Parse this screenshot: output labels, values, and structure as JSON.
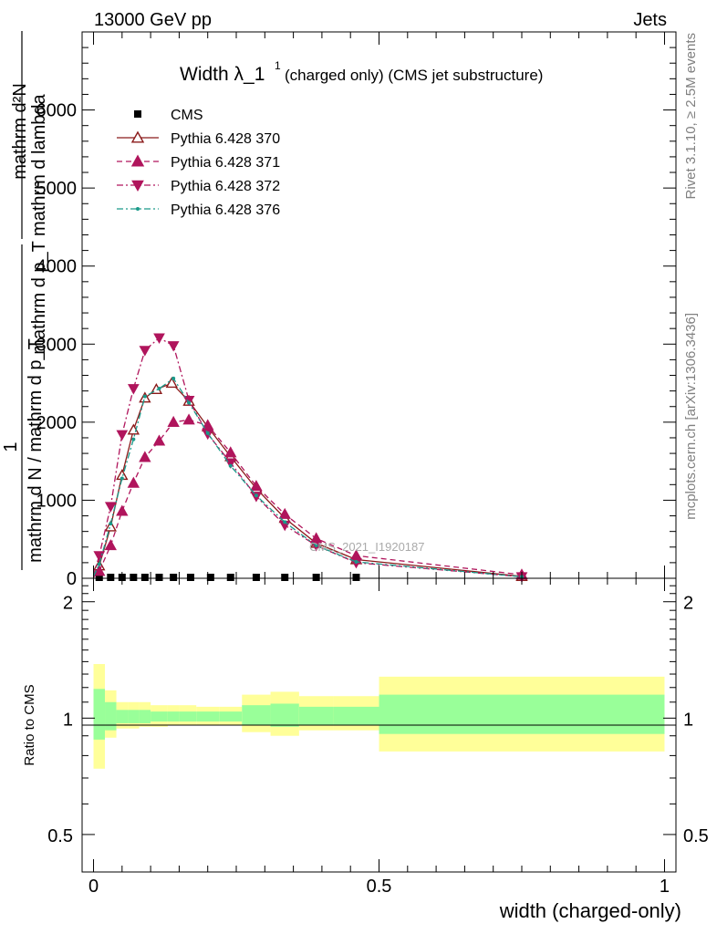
{
  "header": {
    "left": "13000 GeV pp",
    "right": "Jets"
  },
  "side_labels": {
    "rivet": "Rivet 3.1.10, ≥ 2.5M events",
    "mcplots": "mcplots.cern.ch [arXiv:1306.3436]"
  },
  "chart_data": [
    {
      "type": "line",
      "panel": "main",
      "title": "Width λ_1",
      "title_sup": "1",
      "subtitle": "(charged only) (CMS jet substructure)",
      "ylabel_numerator": "mathrm d²N",
      "ylabel_denominator": "mathrm d p_T mathrm d lambda",
      "ylabel_frac_left": "1",
      "ylabel_bottom": "mathrm d N / mathrm d p_T",
      "xlim": [
        -0.02,
        1.02
      ],
      "ylim": [
        0,
        7000
      ],
      "y_ticks": [
        0,
        1000,
        2000,
        3000,
        4000,
        5000,
        6000
      ],
      "y_tick_labels": [
        "0",
        "1000",
        "2000",
        "3000",
        "4000",
        "5000",
        "6000"
      ],
      "legend_position": "top-left",
      "watermark": "CMS_2021_I1920187",
      "series": [
        {
          "name": "CMS",
          "color": "#000000",
          "marker": "square",
          "line": "none",
          "x": [
            0.01,
            0.03,
            0.05,
            0.07,
            0.09,
            0.115,
            0.14,
            0.17,
            0.205,
            0.24,
            0.285,
            0.335,
            0.39,
            0.46
          ],
          "y": [
            0,
            0,
            0,
            0,
            0,
            0,
            0,
            0,
            0,
            0,
            0,
            0,
            0,
            0
          ]
        },
        {
          "name": "Pythia 6.428 370",
          "color": "#8b1a1a",
          "marker": "triangle-up-open",
          "line": "solid",
          "x": [
            0.0,
            0.01,
            0.03,
            0.05,
            0.07,
            0.09,
            0.11,
            0.137,
            0.167,
            0.2,
            0.24,
            0.285,
            0.335,
            0.39,
            0.46,
            0.75
          ],
          "y": [
            20,
            160,
            660,
            1320,
            1900,
            2310,
            2420,
            2500,
            2270,
            1940,
            1560,
            1150,
            770,
            450,
            240,
            25
          ]
        },
        {
          "name": "Pythia 6.428 371",
          "color": "#b0155c",
          "marker": "triangle-up",
          "line": "dashed",
          "x": [
            0.0,
            0.01,
            0.03,
            0.05,
            0.07,
            0.09,
            0.115,
            0.14,
            0.167,
            0.2,
            0.24,
            0.285,
            0.335,
            0.39,
            0.46,
            0.75
          ],
          "y": [
            10,
            90,
            420,
            860,
            1220,
            1550,
            1760,
            2000,
            2030,
            1960,
            1610,
            1180,
            820,
            510,
            290,
            45
          ]
        },
        {
          "name": "Pythia 6.428 372",
          "color": "#b0155c",
          "marker": "triangle-down",
          "line": "dashdot",
          "x": [
            0.0,
            0.01,
            0.03,
            0.05,
            0.07,
            0.09,
            0.115,
            0.14,
            0.167,
            0.2,
            0.24,
            0.285,
            0.335,
            0.39,
            0.46,
            0.75
          ],
          "y": [
            40,
            290,
            920,
            1840,
            2430,
            2920,
            3080,
            2980,
            2280,
            1850,
            1480,
            1050,
            680,
            420,
            200,
            20
          ]
        },
        {
          "name": "Pythia 6.428 376",
          "color": "#1a9a8a",
          "marker": "dot",
          "line": "dashdot",
          "x": [
            0.0,
            0.01,
            0.03,
            0.05,
            0.07,
            0.09,
            0.115,
            0.14,
            0.167,
            0.2,
            0.24,
            0.285,
            0.335,
            0.39,
            0.46,
            0.75
          ],
          "y": [
            25,
            180,
            700,
            1280,
            1780,
            2330,
            2430,
            2560,
            2250,
            1860,
            1440,
            1060,
            720,
            420,
            210,
            20
          ]
        }
      ]
    },
    {
      "type": "area",
      "panel": "ratio",
      "ylabel": "Ratio to CMS",
      "xlabel": "width (charged-only)",
      "xlim": [
        -0.02,
        1.02
      ],
      "ylim": [
        0.4,
        2.3
      ],
      "y_ticks": [
        0.5,
        1,
        2
      ],
      "y_tick_labels": [
        "0.5",
        "1",
        "2"
      ],
      "x_ticks": [
        0,
        0.5,
        1
      ],
      "x_tick_labels": [
        "0",
        "0.5",
        "1"
      ],
      "bins": [
        0.0,
        0.02,
        0.04,
        0.06,
        0.08,
        0.1,
        0.13,
        0.15,
        0.18,
        0.22,
        0.26,
        0.31,
        0.36,
        0.42,
        0.5,
        1.0
      ],
      "band_outer": [
        [
          0.74,
          1.38
        ],
        [
          0.89,
          1.18
        ],
        [
          0.94,
          1.1
        ],
        [
          0.94,
          1.1
        ],
        [
          0.95,
          1.1
        ],
        [
          0.95,
          1.08
        ],
        [
          0.96,
          1.08
        ],
        [
          0.96,
          1.08
        ],
        [
          0.96,
          1.07
        ],
        [
          0.96,
          1.07
        ],
        [
          0.92,
          1.15
        ],
        [
          0.9,
          1.17
        ],
        [
          0.93,
          1.14
        ],
        [
          0.93,
          1.14
        ],
        [
          0.82,
          1.28
        ]
      ],
      "band_inner": [
        [
          0.88,
          1.19
        ],
        [
          0.93,
          1.1
        ],
        [
          0.97,
          1.05
        ],
        [
          0.97,
          1.05
        ],
        [
          0.97,
          1.05
        ],
        [
          0.98,
          1.04
        ],
        [
          0.98,
          1.04
        ],
        [
          0.98,
          1.04
        ],
        [
          0.98,
          1.04
        ],
        [
          0.98,
          1.04
        ],
        [
          0.96,
          1.08
        ],
        [
          0.95,
          1.09
        ],
        [
          0.96,
          1.07
        ],
        [
          0.96,
          1.07
        ],
        [
          0.91,
          1.15
        ]
      ],
      "inner_color": "#99ff99",
      "outer_color": "#ffff99"
    }
  ]
}
